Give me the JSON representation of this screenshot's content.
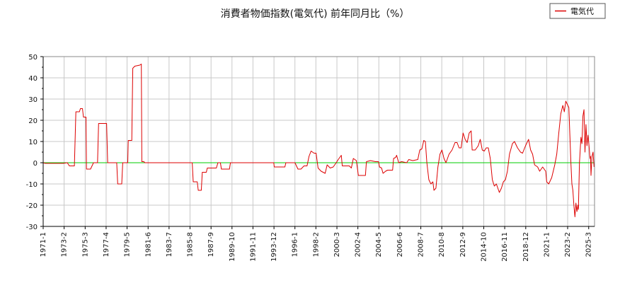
{
  "chart_data": {
    "type": "line",
    "title": "消費者物価指数(電気代) 前年同月比（%）",
    "xlabel": "",
    "ylabel": "",
    "ylim": [
      -30,
      50
    ],
    "yticks": [
      -30,
      -20,
      -10,
      0,
      10,
      20,
      30,
      40,
      50
    ],
    "xlim": [
      1971.0,
      2025.75
    ],
    "xticks": [
      {
        "label": "1971-1",
        "x": 1971.0
      },
      {
        "label": "1973-2",
        "x": 1973.08
      },
      {
        "label": "1975-3",
        "x": 1975.17
      },
      {
        "label": "1977-4",
        "x": 1977.25
      },
      {
        "label": "1979-5",
        "x": 1979.33
      },
      {
        "label": "1981-6",
        "x": 1981.42
      },
      {
        "label": "1983-7",
        "x": 1983.5
      },
      {
        "label": "1985-8",
        "x": 1985.58
      },
      {
        "label": "1987-9",
        "x": 1987.67
      },
      {
        "label": "1989-10",
        "x": 1989.75
      },
      {
        "label": "1991-11",
        "x": 1991.83
      },
      {
        "label": "1993-12",
        "x": 1993.92
      },
      {
        "label": "1996-1",
        "x": 1996.0
      },
      {
        "label": "1998-2",
        "x": 1998.08
      },
      {
        "label": "2000-3",
        "x": 2000.17
      },
      {
        "label": "2002-4",
        "x": 2002.25
      },
      {
        "label": "2004-5",
        "x": 2004.33
      },
      {
        "label": "2006-6",
        "x": 2006.42
      },
      {
        "label": "2008-7",
        "x": 2008.5
      },
      {
        "label": "2010-8",
        "x": 2010.58
      },
      {
        "label": "2012-9",
        "x": 2012.67
      },
      {
        "label": "2014-10",
        "x": 2014.75
      },
      {
        "label": "2016-11",
        "x": 2016.83
      },
      {
        "label": "2018-12",
        "x": 2018.92
      },
      {
        "label": "2021-1",
        "x": 2021.0
      },
      {
        "label": "2023-2",
        "x": 2023.08
      },
      {
        "label": "2025-3",
        "x": 2025.17
      }
    ],
    "grid": true,
    "legend_position": "top-right",
    "zero_line_color": "#00cc00",
    "series": [
      {
        "name": "電気代",
        "color": "#dd0000",
        "points": [
          [
            1971.0,
            0
          ],
          [
            1971.2,
            -0.3
          ],
          [
            1973.0,
            -0.3
          ],
          [
            1973.4,
            0
          ],
          [
            1973.6,
            -1.5
          ],
          [
            1974.1,
            -1.5
          ],
          [
            1974.25,
            24
          ],
          [
            1974.6,
            24
          ],
          [
            1974.7,
            25.5
          ],
          [
            1974.9,
            25.5
          ],
          [
            1975.0,
            21.5
          ],
          [
            1975.25,
            21.5
          ],
          [
            1975.3,
            -3
          ],
          [
            1975.7,
            -3
          ],
          [
            1976.0,
            0
          ],
          [
            1976.4,
            0
          ],
          [
            1976.5,
            18.5
          ],
          [
            1977.3,
            18.5
          ],
          [
            1977.4,
            0
          ],
          [
            1978.3,
            0
          ],
          [
            1978.4,
            -10
          ],
          [
            1978.8,
            -10
          ],
          [
            1978.9,
            0
          ],
          [
            1979.4,
            0
          ],
          [
            1979.45,
            10.5
          ],
          [
            1979.8,
            10.5
          ],
          [
            1979.9,
            44.5
          ],
          [
            1980.1,
            45.5
          ],
          [
            1980.6,
            46
          ],
          [
            1980.75,
            46.5
          ],
          [
            1980.8,
            0.5
          ],
          [
            1981.0,
            0.5
          ],
          [
            1981.1,
            0
          ],
          [
            1985.8,
            0
          ],
          [
            1985.9,
            -9
          ],
          [
            1986.3,
            -9
          ],
          [
            1986.4,
            -13
          ],
          [
            1986.7,
            -13
          ],
          [
            1986.8,
            -4.5
          ],
          [
            1987.2,
            -4.5
          ],
          [
            1987.3,
            -2.5
          ],
          [
            1988.2,
            -2.5
          ],
          [
            1988.35,
            0
          ],
          [
            1988.6,
            0
          ],
          [
            1988.7,
            -3
          ],
          [
            1989.5,
            -3
          ],
          [
            1989.6,
            0
          ],
          [
            1993.9,
            0
          ],
          [
            1993.95,
            -2
          ],
          [
            1995.0,
            -2
          ],
          [
            1995.1,
            0
          ],
          [
            1996.0,
            0
          ],
          [
            1996.3,
            -3
          ],
          [
            1996.6,
            -3
          ],
          [
            1996.9,
            -1.5
          ],
          [
            1997.2,
            -1.5
          ],
          [
            1997.4,
            3
          ],
          [
            1997.6,
            5.5
          ],
          [
            1997.9,
            4.5
          ],
          [
            1998.1,
            4.5
          ],
          [
            1998.3,
            -2.5
          ],
          [
            1998.6,
            -4
          ],
          [
            1999.0,
            -5
          ],
          [
            1999.2,
            -1
          ],
          [
            1999.5,
            -2.5
          ],
          [
            1999.8,
            -2
          ],
          [
            2000.1,
            0
          ],
          [
            2000.3,
            1.5
          ],
          [
            2000.6,
            3.5
          ],
          [
            2000.7,
            -1.5
          ],
          [
            2001.4,
            -1.5
          ],
          [
            2001.6,
            -2.5
          ],
          [
            2001.8,
            2
          ],
          [
            2002.1,
            1
          ],
          [
            2002.3,
            -6
          ],
          [
            2002.8,
            -6
          ],
          [
            2003.0,
            -6
          ],
          [
            2003.1,
            0.5
          ],
          [
            2003.5,
            1
          ],
          [
            2004.0,
            0.5
          ],
          [
            2004.3,
            0.5
          ],
          [
            2004.4,
            -2
          ],
          [
            2004.6,
            -2.5
          ],
          [
            2004.75,
            -5
          ],
          [
            2005.0,
            -4
          ],
          [
            2005.2,
            -3.5
          ],
          [
            2005.7,
            -3.5
          ],
          [
            2005.8,
            2
          ],
          [
            2006.0,
            2.5
          ],
          [
            2006.1,
            3.5
          ],
          [
            2006.3,
            0
          ],
          [
            2006.6,
            0.5
          ],
          [
            2007.1,
            0
          ],
          [
            2007.3,
            1.5
          ],
          [
            2007.7,
            1
          ],
          [
            2008.2,
            1.5
          ],
          [
            2008.4,
            6
          ],
          [
            2008.6,
            6.5
          ],
          [
            2008.8,
            10.5
          ],
          [
            2008.95,
            10
          ],
          [
            2009.1,
            0
          ],
          [
            2009.3,
            -8
          ],
          [
            2009.5,
            -10
          ],
          [
            2009.7,
            -9
          ],
          [
            2009.8,
            -13
          ],
          [
            2010.0,
            -12
          ],
          [
            2010.2,
            -2
          ],
          [
            2010.4,
            4
          ],
          [
            2010.6,
            6
          ],
          [
            2010.8,
            2
          ],
          [
            2011.0,
            0
          ],
          [
            2011.3,
            4
          ],
          [
            2011.6,
            6
          ],
          [
            2011.9,
            9.5
          ],
          [
            2012.1,
            9.5
          ],
          [
            2012.3,
            7
          ],
          [
            2012.5,
            7
          ],
          [
            2012.7,
            14
          ],
          [
            2012.9,
            11
          ],
          [
            2013.1,
            9.5
          ],
          [
            2013.3,
            14
          ],
          [
            2013.5,
            15
          ],
          [
            2013.6,
            6
          ],
          [
            2013.9,
            6
          ],
          [
            2014.2,
            8
          ],
          [
            2014.4,
            11
          ],
          [
            2014.6,
            6
          ],
          [
            2014.8,
            5.5
          ],
          [
            2015.0,
            7
          ],
          [
            2015.2,
            7
          ],
          [
            2015.4,
            2
          ],
          [
            2015.6,
            -8
          ],
          [
            2015.8,
            -11
          ],
          [
            2016.0,
            -10
          ],
          [
            2016.3,
            -14
          ],
          [
            2016.5,
            -12
          ],
          [
            2016.7,
            -9
          ],
          [
            2016.9,
            -8
          ],
          [
            2017.1,
            -4
          ],
          [
            2017.3,
            4
          ],
          [
            2017.6,
            9
          ],
          [
            2017.8,
            10
          ],
          [
            2018.1,
            7
          ],
          [
            2018.4,
            5
          ],
          [
            2018.6,
            4.5
          ],
          [
            2018.9,
            8
          ],
          [
            2019.2,
            11
          ],
          [
            2019.4,
            6
          ],
          [
            2019.6,
            4
          ],
          [
            2019.8,
            -1
          ],
          [
            2020.1,
            -2
          ],
          [
            2020.3,
            -4
          ],
          [
            2020.6,
            -2
          ],
          [
            2020.9,
            -4
          ],
          [
            2021.0,
            -9
          ],
          [
            2021.2,
            -10
          ],
          [
            2021.5,
            -7
          ],
          [
            2021.8,
            -1
          ],
          [
            2022.0,
            4
          ],
          [
            2022.2,
            14
          ],
          [
            2022.4,
            23
          ],
          [
            2022.6,
            27
          ],
          [
            2022.75,
            24
          ],
          [
            2022.9,
            29
          ],
          [
            2023.1,
            27
          ],
          [
            2023.2,
            26
          ],
          [
            2023.4,
            0
          ],
          [
            2023.5,
            -10
          ],
          [
            2023.6,
            -13
          ],
          [
            2023.7,
            -20
          ],
          [
            2023.8,
            -25.5
          ],
          [
            2023.9,
            -19
          ],
          [
            2024.0,
            -23
          ],
          [
            2024.1,
            -20
          ],
          [
            2024.15,
            -22
          ],
          [
            2024.25,
            0
          ],
          [
            2024.4,
            12
          ],
          [
            2024.5,
            9
          ],
          [
            2024.6,
            22
          ],
          [
            2024.7,
            25
          ],
          [
            2024.8,
            5
          ],
          [
            2024.9,
            18
          ],
          [
            2025.0,
            8
          ],
          [
            2025.1,
            13
          ],
          [
            2025.2,
            8
          ],
          [
            2025.3,
            2
          ],
          [
            2025.35,
            3
          ],
          [
            2025.4,
            -6
          ],
          [
            2025.5,
            3
          ],
          [
            2025.6,
            5
          ],
          [
            2025.7,
            -2
          ]
        ]
      }
    ]
  }
}
